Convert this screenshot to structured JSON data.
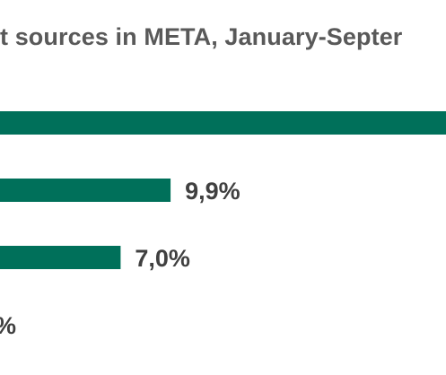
{
  "colors": {
    "bar": "#00705a",
    "label": "#404040",
    "title": "#595959",
    "background": "#ffffff"
  },
  "chart_data": {
    "type": "bar",
    "orientation": "horizontal",
    "title": "t sources in META, January-Septer",
    "categories": [
      "",
      "",
      "",
      ""
    ],
    "values": [
      null,
      9.9,
      7.0,
      null
    ],
    "data_labels": [
      "",
      "9,9%",
      "7,0%",
      "%"
    ],
    "xlabel": "",
    "ylabel": "",
    "grid": false,
    "legend": "none"
  }
}
